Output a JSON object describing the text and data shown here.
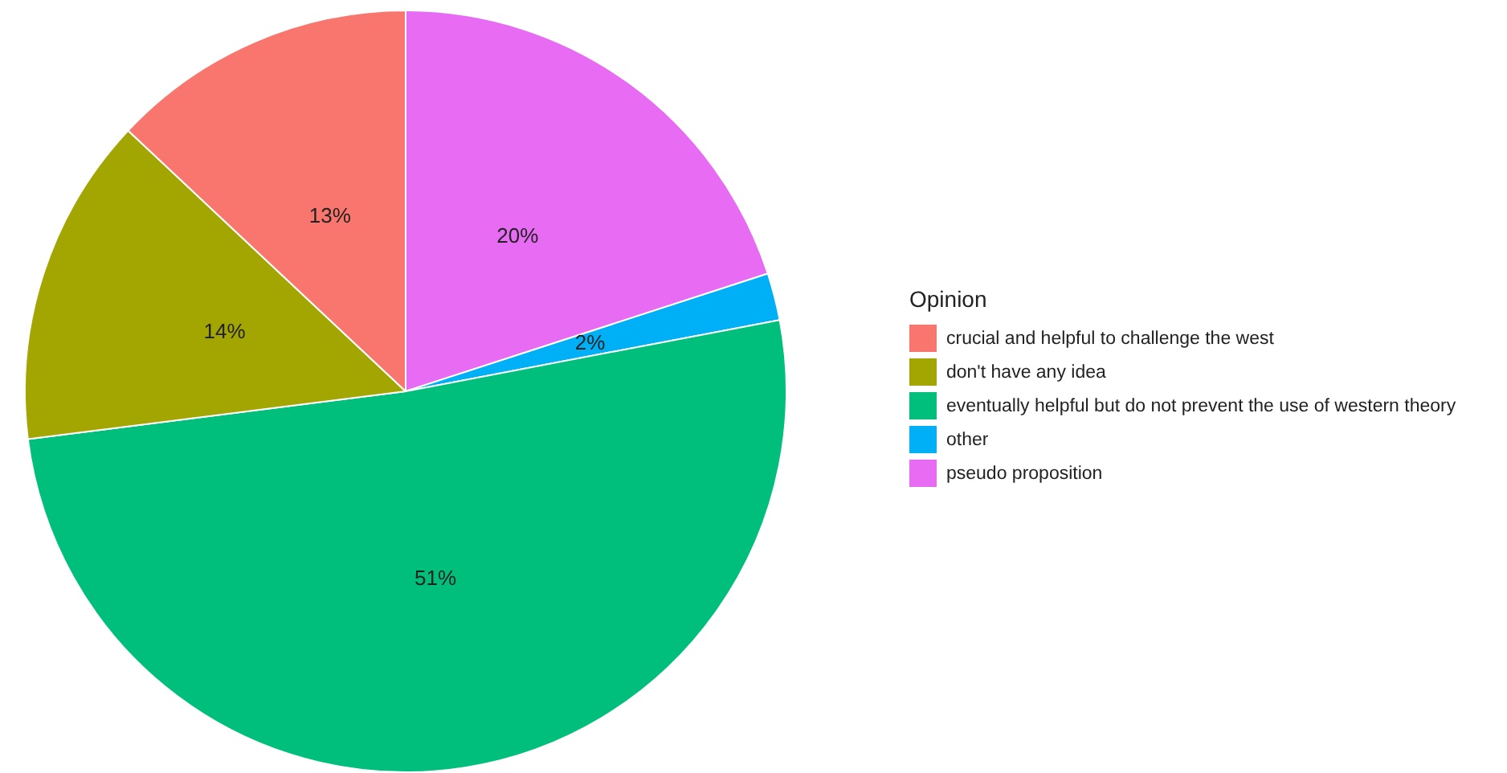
{
  "chart_data": {
    "type": "pie",
    "legend_title": "Opinion",
    "legend": "right",
    "value_labels": [
      "13%",
      "14%",
      "51%",
      "2%",
      "20%"
    ],
    "categories": [
      "crucial and helpful to challenge the west",
      "don't have any idea",
      "eventually helpful but do not prevent the use of western theory",
      "other",
      "pseudo proposition"
    ],
    "values": [
      13,
      14,
      51,
      2,
      20
    ],
    "colors": [
      "#f8766d",
      "#a3a500",
      "#00bf7d",
      "#00b0f6",
      "#e76bf3"
    ]
  }
}
